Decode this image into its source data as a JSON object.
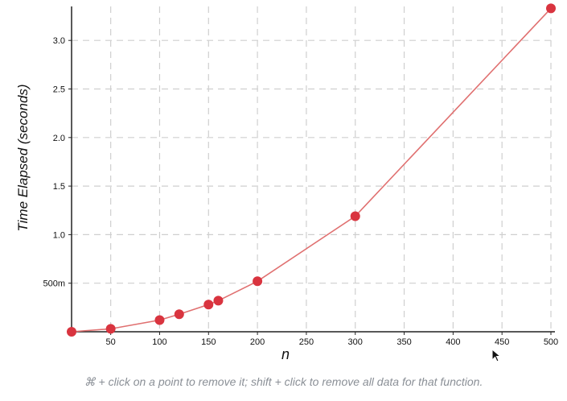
{
  "chart_data": {
    "type": "line",
    "title": "",
    "xlabel": "n",
    "ylabel": "Time Elapsed (seconds)",
    "xlim": [
      10,
      500
    ],
    "ylim": [
      0,
      3.35
    ],
    "grid": true,
    "x_ticks": [
      {
        "value": 50,
        "label": "50"
      },
      {
        "value": 100,
        "label": "100"
      },
      {
        "value": 150,
        "label": "150"
      },
      {
        "value": 200,
        "label": "200"
      },
      {
        "value": 250,
        "label": "250"
      },
      {
        "value": 300,
        "label": "300"
      },
      {
        "value": 350,
        "label": "350"
      },
      {
        "value": 400,
        "label": "400"
      },
      {
        "value": 450,
        "label": "450"
      },
      {
        "value": 500,
        "label": "500"
      }
    ],
    "y_ticks": [
      {
        "value": 0.5,
        "label": "500m"
      },
      {
        "value": 1.0,
        "label": "1.0"
      },
      {
        "value": 1.5,
        "label": "1.5"
      },
      {
        "value": 2.0,
        "label": "2.0"
      },
      {
        "value": 2.5,
        "label": "2.5"
      },
      {
        "value": 3.0,
        "label": "3.0"
      }
    ],
    "series": [
      {
        "color": "#d9343f",
        "line_color": "#e07070",
        "points": [
          {
            "x": 10,
            "y": 0.0
          },
          {
            "x": 50,
            "y": 0.03
          },
          {
            "x": 100,
            "y": 0.12
          },
          {
            "x": 120,
            "y": 0.18
          },
          {
            "x": 150,
            "y": 0.28
          },
          {
            "x": 160,
            "y": 0.32
          },
          {
            "x": 200,
            "y": 0.52
          },
          {
            "x": 300,
            "y": 1.19
          },
          {
            "x": 500,
            "y": 3.33
          }
        ]
      }
    ]
  },
  "caption": "⌘ + click on a point to remove it; shift + click to remove all data for that function."
}
